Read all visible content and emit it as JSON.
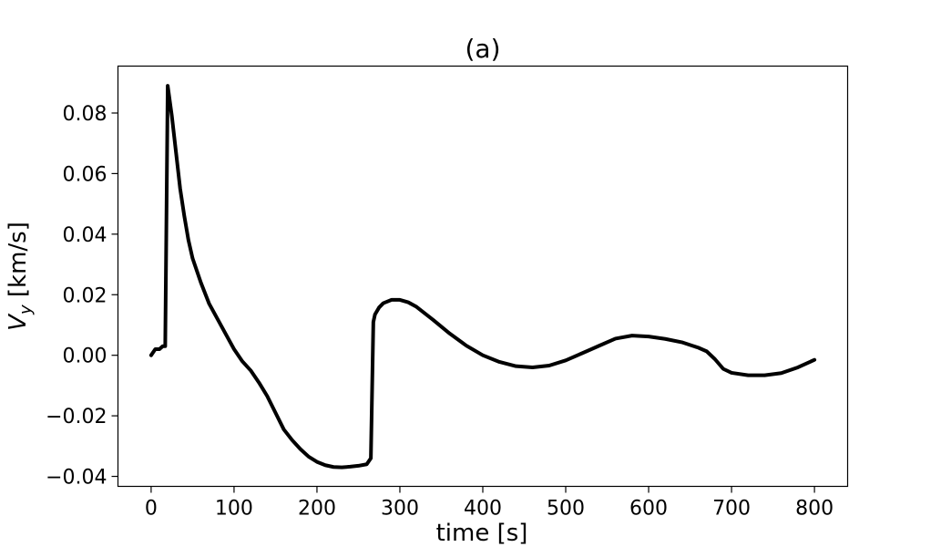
{
  "chart_data": {
    "type": "line",
    "title": "(a)",
    "xlabel": "time [s]",
    "ylabel_main": "V",
    "ylabel_sub": "y",
    "ylabel_unit": " [km/s]",
    "xlim": [
      -40,
      840
    ],
    "ylim": [
      -0.0433,
      0.0955
    ],
    "xticks": [
      0,
      100,
      200,
      300,
      400,
      500,
      600,
      700,
      800
    ],
    "xtick_labels": [
      "0",
      "100",
      "200",
      "300",
      "400",
      "500",
      "600",
      "700",
      "800"
    ],
    "yticks": [
      -0.04,
      -0.02,
      0.0,
      0.02,
      0.04,
      0.06,
      0.08
    ],
    "ytick_labels": [
      "−0.04",
      "−0.02",
      "0.00",
      "0.02",
      "0.04",
      "0.06",
      "0.08"
    ],
    "grid": false,
    "line_color": "#000000",
    "series": [
      {
        "x": [
          0,
          5,
          10,
          14,
          17,
          20,
          25,
          30,
          35,
          40,
          45,
          50,
          60,
          70,
          80,
          90,
          100,
          110,
          120,
          130,
          140,
          150,
          160,
          170,
          180,
          190,
          200,
          210,
          220,
          230,
          240,
          250,
          260,
          265,
          268,
          270,
          275,
          280,
          290,
          300,
          310,
          320,
          340,
          360,
          380,
          400,
          420,
          440,
          460,
          480,
          500,
          520,
          540,
          560,
          580,
          600,
          620,
          640,
          660,
          670,
          680,
          690,
          700,
          720,
          740,
          760,
          780,
          800
        ],
        "y": [
          0.0,
          0.002,
          0.002,
          0.003,
          0.003,
          0.089,
          0.079,
          0.067,
          0.055,
          0.046,
          0.038,
          0.032,
          0.024,
          0.017,
          0.012,
          0.007,
          0.002,
          -0.002,
          -0.005,
          -0.009,
          -0.0135,
          -0.019,
          -0.0245,
          -0.028,
          -0.031,
          -0.0335,
          -0.0352,
          -0.0363,
          -0.0369,
          -0.037,
          -0.0368,
          -0.0365,
          -0.036,
          -0.034,
          0.011,
          0.0135,
          0.0158,
          0.0172,
          0.0183,
          0.0183,
          0.0175,
          0.016,
          0.0117,
          0.0072,
          0.0032,
          0.0,
          -0.0022,
          -0.0036,
          -0.004,
          -0.0034,
          -0.0017,
          0.0007,
          0.0031,
          0.0055,
          0.0065,
          0.0062,
          0.0054,
          0.0043,
          0.0025,
          0.0013,
          -0.0013,
          -0.0045,
          -0.0058,
          -0.0066,
          -0.0066,
          -0.0059,
          -0.004,
          -0.0015
        ]
      }
    ]
  }
}
